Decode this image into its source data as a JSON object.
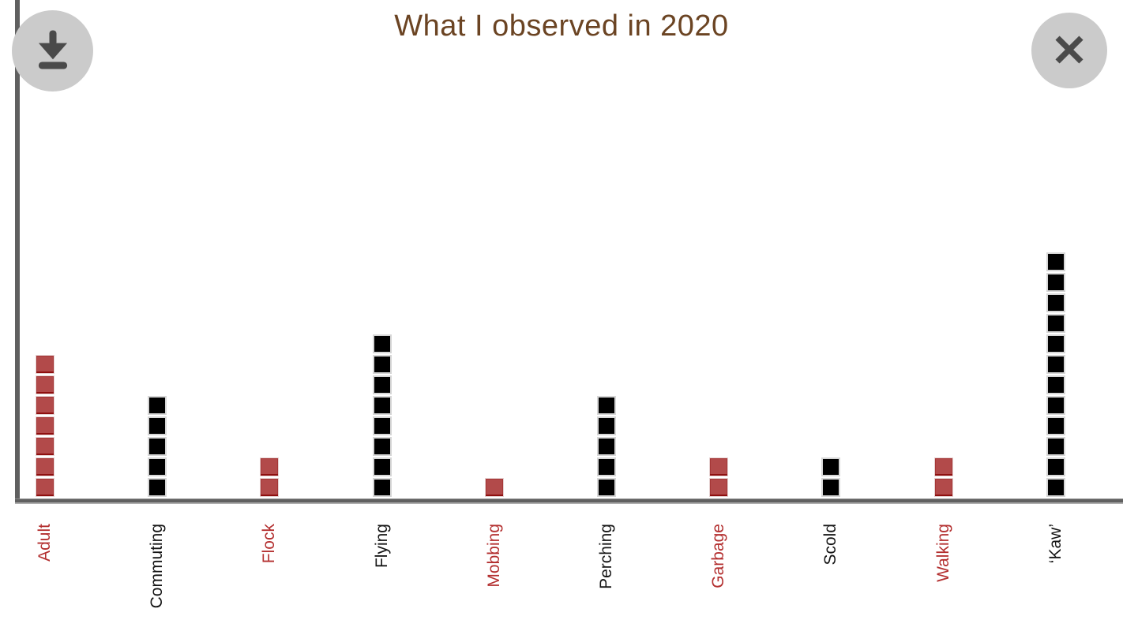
{
  "header": {
    "title": "What I observed in 2020"
  },
  "toolbar": {
    "download_button": "download",
    "close_button": "close"
  },
  "colors": {
    "title": "#6b4423",
    "axis": "#606060",
    "red_fill": "#b24a4a",
    "red_border": "#8e0f0f",
    "black_fill": "#000000",
    "red_label": "#b32f2f",
    "black_label": "#141414",
    "button_bg": "#cbcbcb",
    "button_icon": "#4a4a4a"
  },
  "chart_data": {
    "type": "bar",
    "subtype": "unit-square-pictograph",
    "title": "What I observed in 2020",
    "categories": [
      "Adult",
      "Commuting",
      "Flock",
      "Flying",
      "Mobbing",
      "Perching",
      "Garbage",
      "Scold",
      "Walking",
      "‘Kaw’"
    ],
    "values": [
      7,
      5,
      2,
      8,
      1,
      5,
      2,
      2,
      2,
      12
    ],
    "bar_color_keys": [
      "red",
      "black",
      "red",
      "black",
      "red",
      "black",
      "red",
      "black",
      "red",
      "black"
    ],
    "bar_colors": [
      "#b24a4a",
      "#000000",
      "#b24a4a",
      "#000000",
      "#b24a4a",
      "#000000",
      "#b24a4a",
      "#000000",
      "#b24a4a",
      "#000000"
    ],
    "xlabel": "",
    "ylabel": "",
    "ylim": [
      0,
      12
    ],
    "grid": false,
    "legend": false,
    "unit_square_value": 1
  }
}
